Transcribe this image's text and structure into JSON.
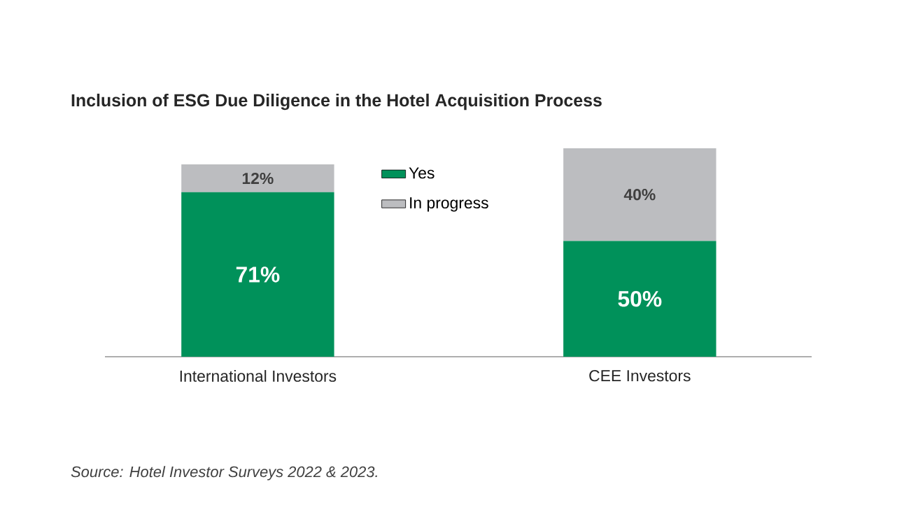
{
  "chart_data": {
    "type": "bar",
    "title": "Inclusion of ESG Due Diligence in the Hotel Acquisition Process",
    "stacked": true,
    "legend": "top",
    "categories": [
      "International Investors",
      "CEE Investors"
    ],
    "series": [
      {
        "name": "Yes",
        "color": "#00915a",
        "values": [
          71,
          50
        ],
        "value_labels": [
          "71%",
          "50%"
        ]
      },
      {
        "name": "In progress",
        "color": "#bcbdc0",
        "values": [
          12,
          40
        ],
        "value_labels": [
          "12%",
          "40%"
        ]
      }
    ],
    "annotations": [
      "Source: Hotel Investor Surveys 2022 & 2023."
    ]
  }
}
